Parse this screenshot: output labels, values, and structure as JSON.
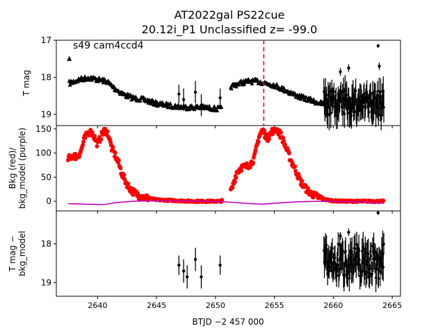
{
  "figure": {
    "title_line1": "AT2022gal  PS22cue",
    "title_line2": "20.12i_P1 Unclassified z= -99.0",
    "annotation": "s49 cam4ccd4",
    "xlabel": "BTJD −2 457 000"
  },
  "chart_data": [
    {
      "type": "scatter",
      "panel": "top",
      "ylabel": "T mag",
      "y_inverted": true,
      "xlim": [
        2636.5,
        2665.7
      ],
      "ylim": [
        19.3,
        17.0
      ],
      "yticks": [
        17,
        18,
        19
      ],
      "xticks": [
        2640,
        2645,
        2650,
        2655,
        2660,
        2665
      ],
      "vline": {
        "x": 2654.1,
        "color": "#d62728",
        "style": "dashed"
      },
      "series": [
        {
          "kind": "triangle-band",
          "color": "#000000",
          "segments": [
            {
              "x": [
                2637.6,
                2638.5,
                2639.2,
                2640.0,
                2640.8,
                2641.5,
                2642.2,
                2643.0,
                2644.0,
                2645.0,
                2646.0,
                2647.5,
                2649.0,
                2650.5
              ],
              "y": [
                18.15,
                18.05,
                18.0,
                18.05,
                18.1,
                18.3,
                18.45,
                18.55,
                18.6,
                18.7,
                18.75,
                18.8,
                18.8,
                18.85
              ]
            },
            {
              "x": [
                2651.3,
                2652.0,
                2652.8,
                2653.6,
                2654.3,
                2655.0,
                2656.0,
                2657.0,
                2658.0,
                2659.0,
                2659.6
              ],
              "y": [
                18.25,
                18.15,
                18.1,
                18.1,
                18.15,
                18.2,
                18.35,
                18.5,
                18.6,
                18.7,
                18.75
              ]
            }
          ],
          "outlier": {
            "x": 2637.6,
            "y": 17.5
          }
        },
        {
          "kind": "errorbar",
          "color": "#000000",
          "points": [
            {
              "x": 2646.9,
              "y": 18.45,
              "e": 0.25
            },
            {
              "x": 2647.3,
              "y": 18.6,
              "e": 0.3
            },
            {
              "x": 2648.3,
              "y": 18.4,
              "e": 0.3
            },
            {
              "x": 2648.8,
              "y": 18.75,
              "e": 0.3
            },
            {
              "x": 2650.4,
              "y": 18.55,
              "e": 0.25
            },
            {
              "x": 2660.6,
              "y": 17.85,
              "e": 0.1
            },
            {
              "x": 2661.3,
              "y": 17.75,
              "e": 0.1
            },
            {
              "x": 2663.8,
              "y": 17.15,
              "e": 0.05
            },
            {
              "x": 2663.9,
              "y": 17.7,
              "e": 0.1
            }
          ],
          "noisy_range": {
            "x": [
              2659.2,
              2664.3
            ],
            "y_center": 18.7,
            "y_spread": 0.35,
            "err": 0.35
          }
        }
      ]
    },
    {
      "type": "scatter",
      "panel": "middle",
      "ylabel": "Bkg (red)/\nbkg_model (purple)",
      "xlim": [
        2636.5,
        2665.7
      ],
      "ylim": [
        -20,
        157
      ],
      "yticks": [
        0,
        50,
        100,
        150
      ],
      "series": [
        {
          "name": "Bkg",
          "color": "#ff0000",
          "x": [
            2637.5,
            2637.9,
            2638.3,
            2638.6,
            2638.9,
            2639.3,
            2639.6,
            2640.0,
            2640.3,
            2640.6,
            2640.9,
            2641.2,
            2641.5,
            2641.8,
            2642.1,
            2642.4,
            2642.7,
            2643.0,
            2643.5,
            2644.0,
            2645.0,
            2646.0,
            2647.0,
            2648.0,
            2649.0,
            2650.5,
            2651.4,
            2651.8,
            2652.2,
            2652.6,
            2653.0,
            2653.3,
            2653.7,
            2654.0,
            2654.4,
            2654.8,
            2655.2,
            2655.6,
            2656.0,
            2656.4,
            2656.8,
            2657.2,
            2657.6,
            2658.0,
            2658.4,
            2658.8,
            2659.2,
            2660.0,
            2661.0,
            2662.0,
            2663.0,
            2664.3
          ],
          "y": [
            88,
            95,
            92,
            105,
            130,
            145,
            140,
            118,
            135,
            148,
            140,
            110,
            95,
            78,
            55,
            40,
            28,
            20,
            12,
            8,
            3,
            2,
            1,
            0,
            0,
            0,
            25,
            60,
            70,
            72,
            78,
            90,
            135,
            148,
            130,
            145,
            150,
            135,
            110,
            85,
            65,
            42,
            28,
            18,
            12,
            8,
            4,
            1,
            0,
            0,
            0,
            0
          ]
        },
        {
          "name": "bkg_model",
          "color": "#bf00bf",
          "x": [
            2637.5,
            2639.0,
            2640.5,
            2641.5,
            2643.0,
            2645.0,
            2647.0,
            2649.0,
            2650.5,
            2651.3,
            2653.0,
            2654.0,
            2655.0,
            2657.0,
            2659.0,
            2661.0,
            2663.0,
            2664.3
          ],
          "y": [
            -5,
            -6,
            -7,
            -3,
            0,
            1,
            1,
            0,
            -1,
            -2,
            -5,
            -6,
            -4,
            -1,
            0,
            -1,
            -2,
            -4
          ]
        }
      ]
    },
    {
      "type": "scatter",
      "panel": "bottom",
      "ylabel": "T mag −\nbkg_model",
      "y_inverted": true,
      "xlim": [
        2636.5,
        2665.7
      ],
      "ylim": [
        19.35,
        17.15
      ],
      "yticks": [
        18,
        19
      ],
      "series": [
        {
          "kind": "errorbar",
          "color": "#000000",
          "points": [
            {
              "x": 2646.9,
              "y": 18.55,
              "e": 0.25
            },
            {
              "x": 2647.3,
              "y": 18.7,
              "e": 0.3
            },
            {
              "x": 2647.6,
              "y": 18.85,
              "e": 0.3
            },
            {
              "x": 2648.3,
              "y": 18.4,
              "e": 0.3
            },
            {
              "x": 2648.8,
              "y": 18.85,
              "e": 0.3
            },
            {
              "x": 2650.4,
              "y": 18.55,
              "e": 0.25
            },
            {
              "x": 2660.6,
              "y": 17.8,
              "e": 0.1
            },
            {
              "x": 2661.3,
              "y": 17.7,
              "e": 0.1
            },
            {
              "x": 2663.8,
              "y": 17.2,
              "e": 0.05
            }
          ],
          "noisy_range": {
            "x": [
              2659.2,
              2664.3
            ],
            "y_center": 18.45,
            "y_spread": 0.45,
            "err": 0.35
          }
        }
      ]
    }
  ]
}
